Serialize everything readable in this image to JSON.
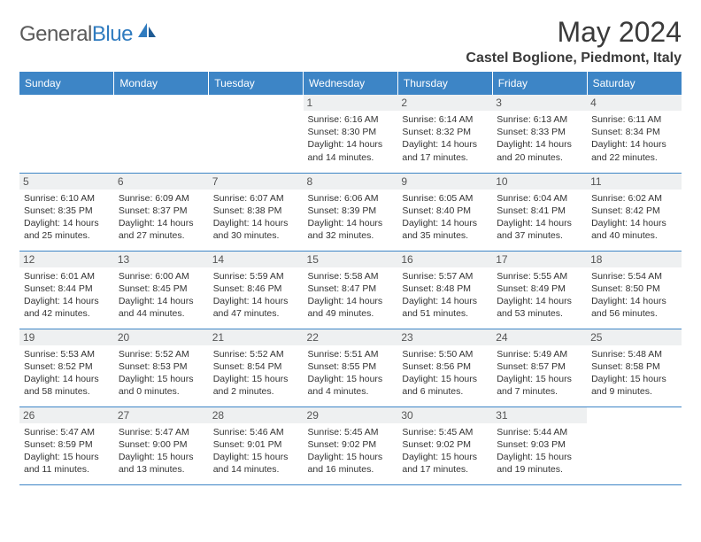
{
  "brand": {
    "name_a": "General",
    "name_b": "Blue"
  },
  "title": "May 2024",
  "location": "Castel Boglione, Piedmont, Italy",
  "header_bg": "#3d85c6",
  "header_fg": "#ffffff",
  "divider_color": "#3d85c6",
  "daynum_bg": "#eef0f1",
  "day_headers": [
    "Sunday",
    "Monday",
    "Tuesday",
    "Wednesday",
    "Thursday",
    "Friday",
    "Saturday"
  ],
  "weeks": [
    [
      {
        "n": "",
        "sr": "",
        "ss": "",
        "dl": ""
      },
      {
        "n": "",
        "sr": "",
        "ss": "",
        "dl": ""
      },
      {
        "n": "",
        "sr": "",
        "ss": "",
        "dl": ""
      },
      {
        "n": "1",
        "sr": "Sunrise: 6:16 AM",
        "ss": "Sunset: 8:30 PM",
        "dl": "Daylight: 14 hours and 14 minutes."
      },
      {
        "n": "2",
        "sr": "Sunrise: 6:14 AM",
        "ss": "Sunset: 8:32 PM",
        "dl": "Daylight: 14 hours and 17 minutes."
      },
      {
        "n": "3",
        "sr": "Sunrise: 6:13 AM",
        "ss": "Sunset: 8:33 PM",
        "dl": "Daylight: 14 hours and 20 minutes."
      },
      {
        "n": "4",
        "sr": "Sunrise: 6:11 AM",
        "ss": "Sunset: 8:34 PM",
        "dl": "Daylight: 14 hours and 22 minutes."
      }
    ],
    [
      {
        "n": "5",
        "sr": "Sunrise: 6:10 AM",
        "ss": "Sunset: 8:35 PM",
        "dl": "Daylight: 14 hours and 25 minutes."
      },
      {
        "n": "6",
        "sr": "Sunrise: 6:09 AM",
        "ss": "Sunset: 8:37 PM",
        "dl": "Daylight: 14 hours and 27 minutes."
      },
      {
        "n": "7",
        "sr": "Sunrise: 6:07 AM",
        "ss": "Sunset: 8:38 PM",
        "dl": "Daylight: 14 hours and 30 minutes."
      },
      {
        "n": "8",
        "sr": "Sunrise: 6:06 AM",
        "ss": "Sunset: 8:39 PM",
        "dl": "Daylight: 14 hours and 32 minutes."
      },
      {
        "n": "9",
        "sr": "Sunrise: 6:05 AM",
        "ss": "Sunset: 8:40 PM",
        "dl": "Daylight: 14 hours and 35 minutes."
      },
      {
        "n": "10",
        "sr": "Sunrise: 6:04 AM",
        "ss": "Sunset: 8:41 PM",
        "dl": "Daylight: 14 hours and 37 minutes."
      },
      {
        "n": "11",
        "sr": "Sunrise: 6:02 AM",
        "ss": "Sunset: 8:42 PM",
        "dl": "Daylight: 14 hours and 40 minutes."
      }
    ],
    [
      {
        "n": "12",
        "sr": "Sunrise: 6:01 AM",
        "ss": "Sunset: 8:44 PM",
        "dl": "Daylight: 14 hours and 42 minutes."
      },
      {
        "n": "13",
        "sr": "Sunrise: 6:00 AM",
        "ss": "Sunset: 8:45 PM",
        "dl": "Daylight: 14 hours and 44 minutes."
      },
      {
        "n": "14",
        "sr": "Sunrise: 5:59 AM",
        "ss": "Sunset: 8:46 PM",
        "dl": "Daylight: 14 hours and 47 minutes."
      },
      {
        "n": "15",
        "sr": "Sunrise: 5:58 AM",
        "ss": "Sunset: 8:47 PM",
        "dl": "Daylight: 14 hours and 49 minutes."
      },
      {
        "n": "16",
        "sr": "Sunrise: 5:57 AM",
        "ss": "Sunset: 8:48 PM",
        "dl": "Daylight: 14 hours and 51 minutes."
      },
      {
        "n": "17",
        "sr": "Sunrise: 5:55 AM",
        "ss": "Sunset: 8:49 PM",
        "dl": "Daylight: 14 hours and 53 minutes."
      },
      {
        "n": "18",
        "sr": "Sunrise: 5:54 AM",
        "ss": "Sunset: 8:50 PM",
        "dl": "Daylight: 14 hours and 56 minutes."
      }
    ],
    [
      {
        "n": "19",
        "sr": "Sunrise: 5:53 AM",
        "ss": "Sunset: 8:52 PM",
        "dl": "Daylight: 14 hours and 58 minutes."
      },
      {
        "n": "20",
        "sr": "Sunrise: 5:52 AM",
        "ss": "Sunset: 8:53 PM",
        "dl": "Daylight: 15 hours and 0 minutes."
      },
      {
        "n": "21",
        "sr": "Sunrise: 5:52 AM",
        "ss": "Sunset: 8:54 PM",
        "dl": "Daylight: 15 hours and 2 minutes."
      },
      {
        "n": "22",
        "sr": "Sunrise: 5:51 AM",
        "ss": "Sunset: 8:55 PM",
        "dl": "Daylight: 15 hours and 4 minutes."
      },
      {
        "n": "23",
        "sr": "Sunrise: 5:50 AM",
        "ss": "Sunset: 8:56 PM",
        "dl": "Daylight: 15 hours and 6 minutes."
      },
      {
        "n": "24",
        "sr": "Sunrise: 5:49 AM",
        "ss": "Sunset: 8:57 PM",
        "dl": "Daylight: 15 hours and 7 minutes."
      },
      {
        "n": "25",
        "sr": "Sunrise: 5:48 AM",
        "ss": "Sunset: 8:58 PM",
        "dl": "Daylight: 15 hours and 9 minutes."
      }
    ],
    [
      {
        "n": "26",
        "sr": "Sunrise: 5:47 AM",
        "ss": "Sunset: 8:59 PM",
        "dl": "Daylight: 15 hours and 11 minutes."
      },
      {
        "n": "27",
        "sr": "Sunrise: 5:47 AM",
        "ss": "Sunset: 9:00 PM",
        "dl": "Daylight: 15 hours and 13 minutes."
      },
      {
        "n": "28",
        "sr": "Sunrise: 5:46 AM",
        "ss": "Sunset: 9:01 PM",
        "dl": "Daylight: 15 hours and 14 minutes."
      },
      {
        "n": "29",
        "sr": "Sunrise: 5:45 AM",
        "ss": "Sunset: 9:02 PM",
        "dl": "Daylight: 15 hours and 16 minutes."
      },
      {
        "n": "30",
        "sr": "Sunrise: 5:45 AM",
        "ss": "Sunset: 9:02 PM",
        "dl": "Daylight: 15 hours and 17 minutes."
      },
      {
        "n": "31",
        "sr": "Sunrise: 5:44 AM",
        "ss": "Sunset: 9:03 PM",
        "dl": "Daylight: 15 hours and 19 minutes."
      },
      {
        "n": "",
        "sr": "",
        "ss": "",
        "dl": ""
      }
    ]
  ]
}
